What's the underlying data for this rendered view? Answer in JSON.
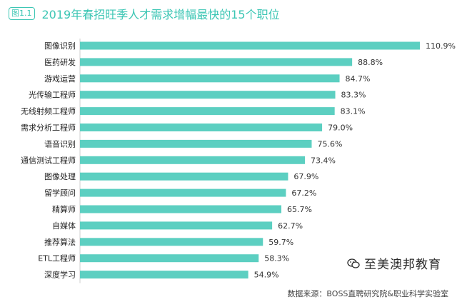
{
  "header": {
    "badge": "图1.1",
    "title": "2019年春招旺季人才需求增幅最快的15个职位"
  },
  "chart_data": {
    "type": "bar",
    "orientation": "horizontal",
    "categories": [
      "图像识别",
      "医药研发",
      "游戏运营",
      "光传输工程师",
      "无线射频工程师",
      "需求分析工程师",
      "语音识别",
      "通信测试工程师",
      "图像处理",
      "留学顾问",
      "精算师",
      "自媒体",
      "推荐算法",
      "ETL工程师",
      "深度学习"
    ],
    "values": [
      110.9,
      88.8,
      84.7,
      83.3,
      83.1,
      79.0,
      75.6,
      73.4,
      67.9,
      67.2,
      65.7,
      62.7,
      59.7,
      58.3,
      54.9
    ],
    "value_labels": [
      "110.9%",
      "88.8%",
      "84.7%",
      "83.3%",
      "83.1%",
      "79.0%",
      "75.6%",
      "73.4%",
      "67.9%",
      "67.2%",
      "65.7%",
      "62.7%",
      "59.7%",
      "58.3%",
      "54.9%"
    ],
    "xlim": [
      0,
      110.9
    ],
    "bar_color": "#5ccfc1",
    "title": "2019年春招旺季人才需求增幅最快的15个职位",
    "xlabel": "",
    "ylabel": ""
  },
  "watermark": {
    "text": "至美澳邦教育",
    "icon": "wechat-icon"
  },
  "source": "数据来源：BOSS直聘研究院&职业科学实验室"
}
